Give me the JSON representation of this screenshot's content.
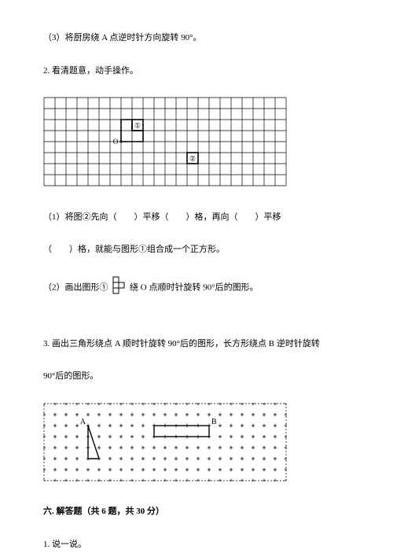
{
  "q3": "（3）将厨房绕 A 点逆时针方向旋转 90°。",
  "q2_title": "2. 看清题意，动手操作。",
  "q2_sub1_a": "（1）将图②先向（",
  "q2_sub1_b": "）平移（",
  "q2_sub1_c": "）格，再向（",
  "q2_sub1_d": "）平移",
  "q2_sub1_e": "（",
  "q2_sub1_f": "）格，就能与图形①组合成一个正方形。",
  "q2_sub2_a": "（2）画出图形①",
  "q2_sub2_b": "绕 O 点顺时针旋转 90°后的图形。",
  "q3main": "3.  画出三角形绕点 A 顺时针旋转 90°后的图形，长方形绕点 B 逆时针旋转",
  "q3main_b": "90°后的图形。",
  "section6": "六. 解答题（共 6 题，共 30 分）",
  "sec6_q1": "1. 说一说。",
  "grid1": {
    "cols": 22,
    "rows": 8,
    "cell": 14,
    "shape1": {
      "label": "①",
      "o_label": "O"
    },
    "shape2": {
      "label": "②"
    }
  },
  "inline_shape": {
    "cell": 7
  },
  "grid2": {
    "cols": 22,
    "rows": 7,
    "cell": 14,
    "labels_a": "A",
    "labels_b": "B"
  },
  "colors": {
    "stroke": "#000000",
    "bg": "#ffffff",
    "fill": "#ffffff"
  }
}
